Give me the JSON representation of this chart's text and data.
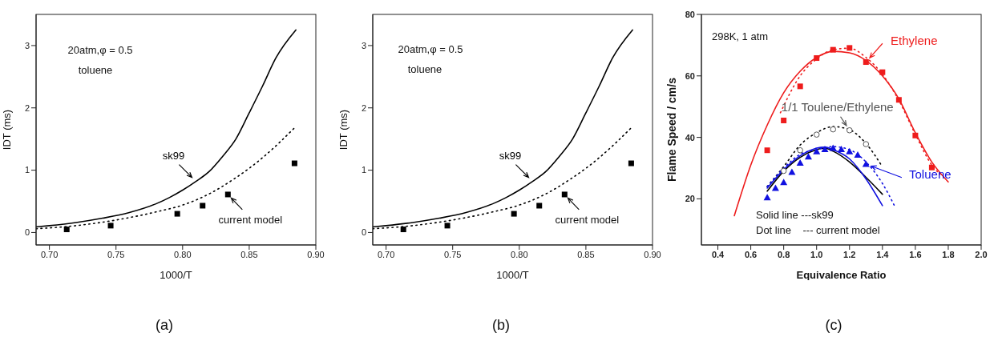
{
  "chart_data": [
    {
      "type": "line",
      "xlabel": "1000/T",
      "ylabel": "IDT (ms)",
      "xlim": [
        0.69,
        0.9
      ],
      "ylim": [
        -0.2,
        3.5
      ],
      "xticks": [
        {
          "value": 0.7,
          "label": "0.70"
        },
        {
          "value": 0.75,
          "label": "0.75"
        },
        {
          "value": 0.8,
          "label": "0.80"
        },
        {
          "value": 0.85,
          "label": "0.85"
        },
        {
          "value": 0.9,
          "label": "0.90"
        }
      ],
      "yticks": [
        0,
        1,
        2,
        3
      ],
      "annotations": [
        "20atm,φ = 0.5",
        "toluene",
        {
          "text": "current model",
          "x": 0.834,
          "y": 0.61
        },
        "(a)"
      ],
      "series": [
        {
          "name": "sk99",
          "line_style": "solid",
          "color": "#000000",
          "x": [
            0.69,
            0.7,
            0.72,
            0.74,
            0.76,
            0.78,
            0.79,
            0.8,
            0.81,
            0.82,
            0.83,
            0.84,
            0.85,
            0.86,
            0.87,
            0.885
          ],
          "values": [
            0.09,
            0.11,
            0.16,
            0.23,
            0.32,
            0.46,
            0.56,
            0.68,
            0.82,
            0.98,
            1.22,
            1.5,
            1.92,
            2.35,
            2.8,
            3.25
          ]
        },
        {
          "line_style": "dotted",
          "color": "#000000",
          "x": [
            0.69,
            0.72,
            0.75,
            0.78,
            0.8,
            0.82,
            0.84,
            0.85,
            0.86,
            0.885
          ],
          "values": [
            0.06,
            0.11,
            0.2,
            0.33,
            0.44,
            0.62,
            0.88,
            1.03,
            1.2,
            1.7
          ]
        },
        {
          "type": "scatter",
          "marker": "square",
          "color": "#000000",
          "x": [
            0.713,
            0.746,
            0.796,
            0.815,
            0.834,
            0.884
          ],
          "values": [
            0.05,
            0.11,
            0.3,
            0.43,
            0.61,
            1.11
          ]
        }
      ]
    },
    {
      "type": "line",
      "xlabel": "1000/T",
      "ylabel": "IDT (ms)",
      "xlim": [
        0.69,
        0.9
      ],
      "ylim": [
        -0.2,
        3.5
      ],
      "xticks": [
        {
          "value": 0.7,
          "label": "0.70"
        },
        {
          "value": 0.75,
          "label": "0.75"
        },
        {
          "value": 0.8,
          "label": "0.80"
        },
        {
          "value": 0.85,
          "label": "0.85"
        },
        {
          "value": 0.9,
          "label": "0.90"
        }
      ],
      "yticks": [
        0,
        1,
        2,
        3
      ],
      "annotations": [
        "20atm,φ = 0.5",
        "toluene",
        {
          "text": "current model",
          "x": 0.834,
          "y": 0.61
        },
        "(b)"
      ],
      "series": [
        {
          "name": "sk99",
          "line_style": "solid",
          "color": "#000000",
          "x": [
            0.69,
            0.7,
            0.72,
            0.74,
            0.76,
            0.78,
            0.79,
            0.8,
            0.81,
            0.82,
            0.83,
            0.84,
            0.85,
            0.86,
            0.87,
            0.885
          ],
          "values": [
            0.09,
            0.11,
            0.16,
            0.23,
            0.32,
            0.46,
            0.56,
            0.68,
            0.82,
            0.98,
            1.22,
            1.5,
            1.92,
            2.35,
            2.8,
            3.25
          ]
        },
        {
          "line_style": "dotted",
          "color": "#000000",
          "x": [
            0.69,
            0.72,
            0.75,
            0.78,
            0.8,
            0.82,
            0.84,
            0.85,
            0.86,
            0.885
          ],
          "values": [
            0.06,
            0.11,
            0.2,
            0.33,
            0.44,
            0.62,
            0.88,
            1.03,
            1.2,
            1.7
          ]
        },
        {
          "type": "scatter",
          "marker": "square",
          "color": "#000000",
          "x": [
            0.713,
            0.746,
            0.796,
            0.815,
            0.834,
            0.884
          ],
          "values": [
            0.05,
            0.11,
            0.3,
            0.43,
            0.61,
            1.11
          ]
        }
      ]
    },
    {
      "type": "line",
      "xlabel": "Equivalence Ratio",
      "ylabel": "Flame Speed / cm/s",
      "xlim": [
        0.3,
        2.0
      ],
      "ylim": [
        5,
        80
      ],
      "xticks": [
        0.4,
        0.6,
        0.8,
        {
          "value": 1,
          "label": "1.0"
        },
        1.2,
        1.4,
        1.6,
        1.8,
        {
          "value": 2,
          "label": "2.0"
        }
      ],
      "yticks": [
        20,
        40,
        60,
        80
      ],
      "annotations": [
        "298K, 1 atm",
        "Solid line ---sk99",
        "Dot line    --- current model",
        "(c)"
      ],
      "series": [
        {
          "line_style": "solid",
          "color": "#ee1c1c",
          "x": [
            0.5,
            0.6,
            0.7,
            0.8,
            0.9,
            1.0,
            1.1,
            1.2,
            1.3,
            1.4,
            1.5,
            1.6,
            1.7,
            1.8
          ],
          "values": [
            14.5,
            31,
            44,
            54.5,
            61.5,
            66,
            68,
            67.5,
            65,
            60,
            52.5,
            41.5,
            32,
            25.5
          ]
        },
        {
          "line_style": "dotted",
          "color": "#ee1c1c",
          "x": [
            0.78,
            0.9,
            1.0,
            1.1,
            1.2,
            1.3,
            1.4,
            1.5,
            1.6,
            1.7,
            1.75
          ],
          "values": [
            48,
            60,
            65.5,
            68.5,
            69,
            66,
            60.5,
            52,
            41,
            31,
            28
          ]
        },
        {
          "name": "Ethylene",
          "type": "scatter",
          "marker": "square",
          "color": "#ee1c1c",
          "x": [
            0.7,
            0.8,
            0.9,
            1.0,
            1.1,
            1.2,
            1.3,
            1.4,
            1.5,
            1.6,
            1.7
          ],
          "values": [
            35.8,
            45.5,
            56.6,
            65.8,
            68.5,
            69.1,
            64.5,
            61.2,
            52.2,
            40.6,
            30.2
          ]
        },
        {
          "line_style": "dotted",
          "color": "#000000",
          "x": [
            0.7,
            0.8,
            0.9,
            1.0,
            1.1,
            1.2,
            1.3,
            1.4
          ],
          "values": [
            24,
            30.5,
            37.5,
            41.5,
            43.5,
            42.5,
            38,
            30.4
          ]
        },
        {
          "name": "1/1 Toulene/Ethylene",
          "type": "scatter",
          "marker": "circle",
          "color": "#555555",
          "x": [
            0.8,
            0.9,
            1.0,
            1.1,
            1.2,
            1.3
          ],
          "values": [
            29.1,
            35.8,
            40.9,
            42.6,
            42.3,
            37.8
          ]
        },
        {
          "line_style": "solid",
          "color": "#000000",
          "x": [
            0.7,
            0.8,
            0.9,
            1.0,
            1.05,
            1.1,
            1.2,
            1.3,
            1.4
          ],
          "values": [
            22.5,
            29,
            33.5,
            36,
            36.5,
            35.5,
            32,
            27,
            21.5
          ]
        },
        {
          "line_style": "solid",
          "color": "#1010e0",
          "x": [
            0.7,
            0.8,
            0.9,
            1.0,
            1.05,
            1.1,
            1.2,
            1.3,
            1.4
          ],
          "values": [
            23.5,
            29.5,
            34,
            36.5,
            36.8,
            36,
            33,
            26.5,
            17.8
          ]
        },
        {
          "line_style": "dotted",
          "color": "#1010e0",
          "x": [
            0.7,
            0.8,
            0.9,
            1.0,
            1.1,
            1.2,
            1.3,
            1.4,
            1.48
          ],
          "values": [
            24,
            30,
            34.5,
            36,
            37,
            36,
            32,
            25,
            17
          ]
        },
        {
          "name": "Toluene",
          "type": "scatter",
          "marker": "triangle",
          "color": "#1010e0",
          "x": [
            0.7,
            0.75,
            0.8,
            0.85,
            0.9,
            0.95,
            1.0,
            1.05,
            1.1,
            1.15,
            1.2,
            1.25,
            1.3
          ],
          "values": [
            20.4,
            23.5,
            25.4,
            28.7,
            31.7,
            33.7,
            35.4,
            36.1,
            36.5,
            36.1,
            35.4,
            34.3,
            31.3
          ]
        }
      ]
    }
  ]
}
